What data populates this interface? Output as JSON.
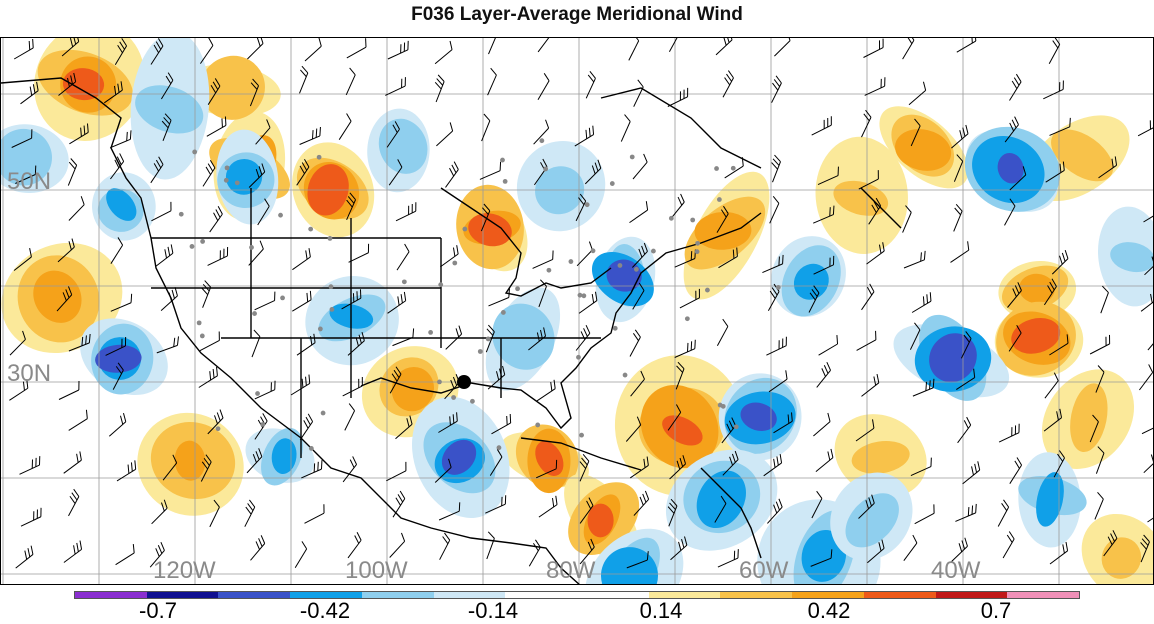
{
  "title": "F036 Layer-Average Meridional Wind",
  "map": {
    "lat_labels": [
      "50N",
      "30N"
    ],
    "lon_labels": [
      "120W",
      "100W",
      "80W",
      "60W",
      "40W"
    ]
  },
  "colorbar": {
    "colors": [
      "#8a2ed0",
      "#101090",
      "#3a52c8",
      "#10a0e8",
      "#8fcfee",
      "#cfe8f6",
      "#ffffff",
      "#ffffff",
      "#fbe99a",
      "#f8c24a",
      "#f5a21a",
      "#ee5a1a",
      "#c01818",
      "#f090b8"
    ],
    "tick_labels": [
      "-0.7",
      "-0.42",
      "-0.14",
      "0.14",
      "0.42",
      "0.7"
    ],
    "positive_colors": [
      "#fbe99a",
      "#f8c24a",
      "#f5a21a",
      "#ee5a1a",
      "#c01818"
    ],
    "negative_colors": [
      "#cfe8f6",
      "#8fcfee",
      "#10a0e8",
      "#3a52c8",
      "#101090"
    ]
  }
}
